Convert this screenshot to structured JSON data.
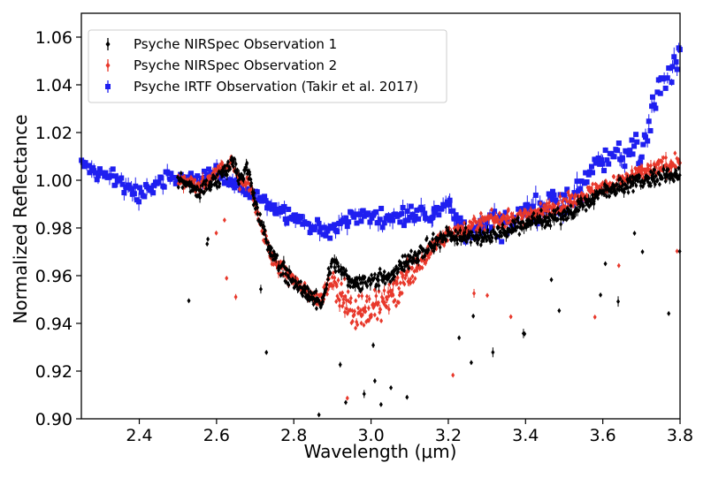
{
  "chart_data": {
    "type": "scatter",
    "xlabel": "Wavelength (μm)",
    "ylabel": "Normalized Reflectance",
    "xlim": [
      2.25,
      3.8
    ],
    "ylim": [
      0.9,
      1.07
    ],
    "x_ticks": [
      2.4,
      2.6,
      2.8,
      3.0,
      3.2,
      3.4,
      3.6,
      3.8
    ],
    "x_tick_labels": [
      "2.4",
      "2.6",
      "2.8",
      "3.0",
      "3.2",
      "3.4",
      "3.6",
      "3.8"
    ],
    "y_ticks": [
      0.9,
      0.92,
      0.94,
      0.96,
      0.98,
      1.0,
      1.02,
      1.04,
      1.06
    ],
    "y_tick_labels": [
      "0.90",
      "0.92",
      "0.94",
      "0.96",
      "0.98",
      "1.00",
      "1.02",
      "1.04",
      "1.06"
    ],
    "grid": false,
    "legend_position": "top-left",
    "series": [
      {
        "name": "Psyche NIRSpec Observation 1",
        "color": "#000000",
        "marker": "diamond",
        "x_range": [
          2.5,
          3.8
        ],
        "x": [
          2.5,
          2.56,
          2.6,
          2.64,
          2.66,
          2.68,
          2.7,
          2.74,
          2.8,
          2.84,
          2.87,
          2.9,
          2.95,
          3.0,
          3.05,
          3.1,
          3.15,
          3.2,
          3.3,
          3.4,
          3.5,
          3.55,
          3.6,
          3.7,
          3.8
        ],
        "y": [
          1.0,
          0.995,
          1.0,
          1.008,
          1.0,
          1.005,
          0.99,
          0.97,
          0.957,
          0.952,
          0.948,
          0.966,
          0.957,
          0.958,
          0.96,
          0.967,
          0.972,
          0.977,
          0.976,
          0.982,
          0.985,
          0.99,
          0.995,
          1.0,
          1.003
        ]
      },
      {
        "name": "Psyche NIRSpec Observation 2",
        "color": "#e8382b",
        "marker": "diamond",
        "x_range": [
          2.5,
          3.8
        ],
        "x": [
          2.5,
          2.56,
          2.6,
          2.64,
          2.66,
          2.68,
          2.7,
          2.74,
          2.8,
          2.84,
          2.87,
          2.9,
          2.95,
          3.0,
          3.05,
          3.1,
          3.15,
          3.2,
          3.3,
          3.4,
          3.5,
          3.55,
          3.6,
          3.7,
          3.8
        ],
        "y": [
          1.0,
          0.997,
          1.003,
          1.008,
          0.998,
          1.0,
          0.99,
          0.968,
          0.958,
          0.953,
          0.95,
          0.958,
          0.945,
          0.945,
          0.952,
          0.96,
          0.97,
          0.978,
          0.983,
          0.985,
          0.99,
          0.994,
          0.997,
          1.003,
          1.008
        ]
      },
      {
        "name": "Psyche IRTF Observation (Takir et al. 2017)",
        "color": "#1f1ff0",
        "marker": "square",
        "x_range": [
          2.25,
          3.8
        ],
        "x": [
          2.25,
          2.3,
          2.35,
          2.4,
          2.45,
          2.5,
          2.55,
          2.6,
          2.62,
          2.88,
          2.92,
          2.96,
          3.0,
          3.05,
          3.1,
          3.15,
          3.2,
          3.25,
          3.3,
          3.35,
          3.4,
          3.5,
          3.6,
          3.7,
          3.75,
          3.8
        ],
        "y": [
          1.007,
          1.003,
          1.0,
          0.993,
          1.0,
          1.002,
          1.0,
          1.005,
          1.0,
          0.978,
          0.982,
          0.985,
          0.985,
          0.984,
          0.986,
          0.985,
          0.99,
          0.977,
          0.983,
          0.98,
          0.988,
          0.99,
          1.01,
          1.013,
          1.04,
          1.05
        ]
      }
    ]
  }
}
